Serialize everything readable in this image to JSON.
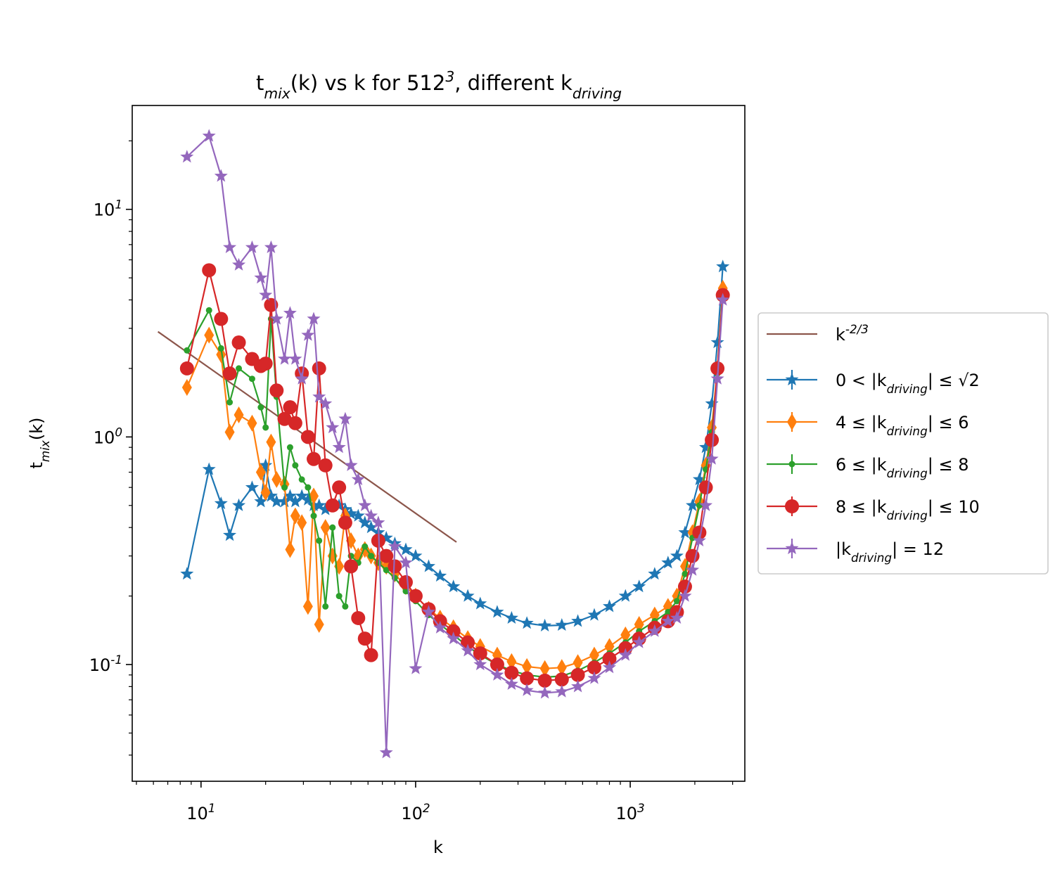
{
  "chart_data": {
    "type": "line",
    "title": "t_{mix}(k) vs k for 512^{3}, different k_{driving}",
    "x_label": "k",
    "y_label": "t_{mix}(k)",
    "x_scale": "log",
    "y_scale": "log",
    "minor_ticks": true,
    "legend": "outside right",
    "xlim": [
      4.78,
      3420
    ],
    "ylim": [
      0.0307,
      28.6
    ],
    "xticks": [
      {
        "value": 10,
        "label": "10^{1}"
      },
      {
        "value": 100,
        "label": "10^{2}"
      },
      {
        "value": 1000,
        "label": "10^{3}"
      }
    ],
    "yticks": [
      {
        "value": 0.1,
        "label": "10^{-1}"
      },
      {
        "value": 1,
        "label": "10^{0}"
      },
      {
        "value": 10,
        "label": "10^{1}"
      }
    ],
    "x": [
      8.6,
      10.9,
      12.4,
      13.6,
      15.0,
      17.3,
      19.0,
      20.0,
      21.2,
      22.5,
      24.5,
      26.0,
      27.5,
      29.5,
      31.5,
      33.5,
      35.5,
      38,
      41,
      44,
      47,
      50,
      54,
      58,
      62,
      67,
      73,
      80,
      90,
      100,
      115,
      130,
      150,
      175,
      200,
      240,
      280,
      330,
      400,
      480,
      570,
      680,
      800,
      950,
      1100,
      1300,
      1500,
      1650,
      1800,
      1950,
      2100,
      2250,
      2400,
      2550,
      2700
    ],
    "series": [
      {
        "name": "k^{-2/3}",
        "color": "#8c564b",
        "marker": "none",
        "x": [
          6.3,
          155
        ],
        "values": [
          2.9,
          0.345
        ]
      },
      {
        "name": "0 < |k_{driving}| ≤ √2",
        "color": "#1f77b4",
        "marker": "star",
        "values": [
          0.25,
          0.72,
          0.51,
          0.37,
          0.5,
          0.6,
          0.52,
          0.75,
          0.55,
          0.52,
          0.52,
          0.55,
          0.52,
          0.55,
          0.53,
          0.5,
          0.5,
          0.48,
          0.5,
          0.5,
          0.48,
          0.46,
          0.45,
          0.42,
          0.4,
          0.38,
          0.36,
          0.34,
          0.32,
          0.3,
          0.27,
          0.245,
          0.22,
          0.2,
          0.185,
          0.17,
          0.16,
          0.152,
          0.148,
          0.149,
          0.155,
          0.165,
          0.18,
          0.2,
          0.22,
          0.25,
          0.28,
          0.3,
          0.38,
          0.5,
          0.65,
          0.9,
          1.4,
          2.6,
          5.6
        ]
      },
      {
        "name": "4 ≤ |k_{driving}| ≤ 6",
        "color": "#ff7f0e",
        "marker": "diamond",
        "values": [
          1.65,
          2.8,
          2.3,
          1.05,
          1.25,
          1.15,
          0.7,
          0.57,
          0.95,
          0.65,
          0.62,
          0.32,
          0.45,
          0.42,
          0.18,
          0.55,
          0.15,
          0.4,
          0.3,
          0.27,
          0.45,
          0.35,
          0.3,
          0.32,
          0.3,
          0.28,
          0.27,
          0.25,
          0.22,
          0.2,
          0.175,
          0.16,
          0.145,
          0.13,
          0.12,
          0.11,
          0.103,
          0.098,
          0.096,
          0.097,
          0.102,
          0.11,
          0.12,
          0.135,
          0.15,
          0.165,
          0.18,
          0.2,
          0.27,
          0.38,
          0.52,
          0.75,
          1.1,
          2.0,
          4.5
        ]
      },
      {
        "name": "6 ≤ |k_{driving}| ≤ 8",
        "color": "#2ca02c",
        "marker": "dot",
        "values": [
          2.4,
          3.6,
          2.45,
          1.42,
          2.0,
          1.8,
          1.35,
          1.1,
          3.3,
          1.5,
          0.6,
          0.9,
          0.75,
          0.65,
          0.6,
          0.45,
          0.35,
          0.18,
          0.4,
          0.2,
          0.18,
          0.3,
          0.28,
          0.33,
          0.3,
          0.28,
          0.26,
          0.24,
          0.21,
          0.19,
          0.165,
          0.15,
          0.135,
          0.12,
          0.11,
          0.1,
          0.094,
          0.09,
          0.088,
          0.089,
          0.094,
          0.102,
          0.112,
          0.125,
          0.14,
          0.155,
          0.17,
          0.19,
          0.25,
          0.36,
          0.5,
          0.72,
          1.05,
          1.9,
          4.3
        ]
      },
      {
        "name": "8 ≤ |k_{driving}| ≤ 10",
        "color": "#d62728",
        "marker": "circle",
        "values": [
          2.0,
          5.4,
          3.3,
          1.9,
          2.6,
          2.2,
          2.05,
          2.1,
          3.8,
          1.6,
          1.2,
          1.35,
          1.15,
          1.9,
          1.0,
          0.8,
          2.0,
          0.75,
          0.5,
          0.6,
          0.42,
          0.27,
          0.16,
          0.13,
          0.11,
          0.35,
          0.3,
          0.27,
          0.23,
          0.2,
          0.175,
          0.155,
          0.14,
          0.125,
          0.112,
          0.1,
          0.092,
          0.087,
          0.085,
          0.086,
          0.09,
          0.097,
          0.106,
          0.118,
          0.13,
          0.145,
          0.155,
          0.17,
          0.22,
          0.3,
          0.38,
          0.6,
          0.97,
          2.0,
          4.2
        ]
      },
      {
        "name": "|k_{driving}| = 12",
        "color": "#9467bd",
        "marker": "star",
        "values": [
          17,
          21,
          14,
          6.8,
          5.7,
          6.8,
          5.0,
          4.2,
          6.8,
          3.3,
          2.2,
          3.5,
          2.2,
          1.8,
          2.8,
          3.3,
          1.5,
          1.4,
          1.1,
          0.9,
          1.2,
          0.75,
          0.65,
          0.5,
          0.45,
          0.42,
          0.041,
          0.33,
          0.28,
          0.096,
          0.17,
          0.145,
          0.13,
          0.115,
          0.1,
          0.09,
          0.082,
          0.077,
          0.075,
          0.076,
          0.08,
          0.087,
          0.097,
          0.11,
          0.125,
          0.14,
          0.155,
          0.16,
          0.2,
          0.26,
          0.35,
          0.5,
          0.8,
          1.8,
          4.0
        ]
      }
    ]
  }
}
